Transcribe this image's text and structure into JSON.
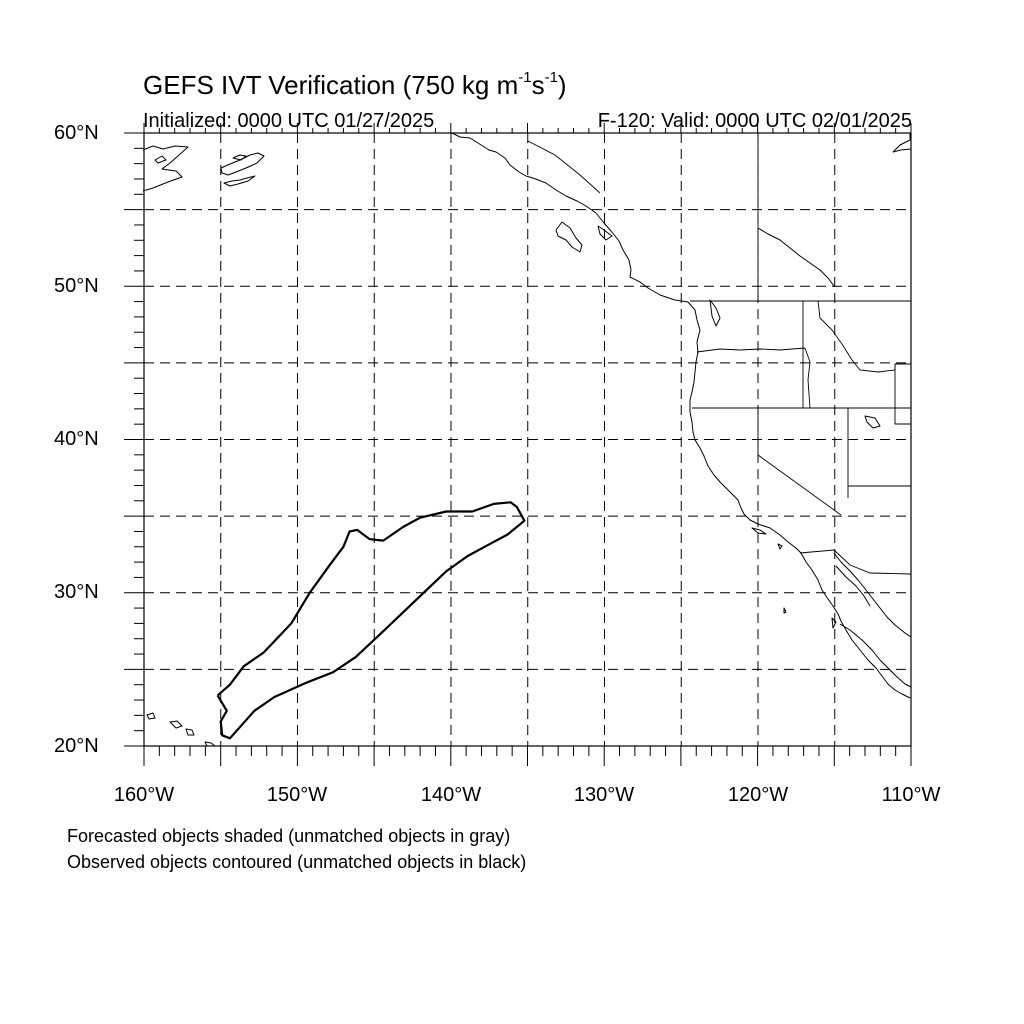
{
  "title_main": "GEFS IVT Verification (750 kg m",
  "title_exp1": "-1",
  "title_mid": "s",
  "title_exp2": "-1",
  "title_end": ")",
  "init_label": "Initialized: 0000 UTC 01/27/2025",
  "valid_label": "F-120: Valid: 0000 UTC 02/01/2025",
  "lat_labels": [
    "60°N",
    "50°N",
    "40°N",
    "30°N",
    "20°N"
  ],
  "lon_labels": [
    "160°W",
    "150°W",
    "140°W",
    "130°W",
    "120°W",
    "110°W"
  ],
  "caption_1": "Forecasted objects shaded (unmatched objects in gray)",
  "caption_2": "Observed objects contoured (unmatched objects in black)",
  "map_extent": {
    "lon": [
      -160,
      -110
    ],
    "lat": [
      20,
      60
    ]
  },
  "observed_object": {
    "status": "unmatched",
    "outline": [
      [
        -155.2,
        23.3
      ],
      [
        -154.4,
        24.0
      ],
      [
        -153.5,
        25.2
      ],
      [
        -152.2,
        26.1
      ],
      [
        -150.4,
        28.0
      ],
      [
        -149.2,
        30.0
      ],
      [
        -147.9,
        31.8
      ],
      [
        -147.0,
        33.0
      ],
      [
        -146.6,
        34.0
      ],
      [
        -146.1,
        34.1
      ],
      [
        -145.3,
        33.5
      ],
      [
        -144.4,
        33.4
      ],
      [
        -143.1,
        34.3
      ],
      [
        -142.0,
        34.9
      ],
      [
        -140.3,
        35.3
      ],
      [
        -138.6,
        35.3
      ],
      [
        -137.2,
        35.8
      ],
      [
        -136.1,
        35.9
      ],
      [
        -135.7,
        35.6
      ],
      [
        -135.2,
        34.7
      ],
      [
        -136.3,
        33.8
      ],
      [
        -137.6,
        33.1
      ],
      [
        -138.9,
        32.4
      ],
      [
        -140.3,
        31.4
      ],
      [
        -142.4,
        29.4
      ],
      [
        -144.6,
        27.3
      ],
      [
        -146.2,
        25.8
      ],
      [
        -147.7,
        24.8
      ],
      [
        -149.5,
        24.1
      ],
      [
        -151.5,
        23.2
      ],
      [
        -152.8,
        22.3
      ],
      [
        -154.4,
        20.5
      ],
      [
        -154.9,
        20.7
      ],
      [
        -155.0,
        21.6
      ],
      [
        -154.6,
        22.3
      ]
    ]
  }
}
